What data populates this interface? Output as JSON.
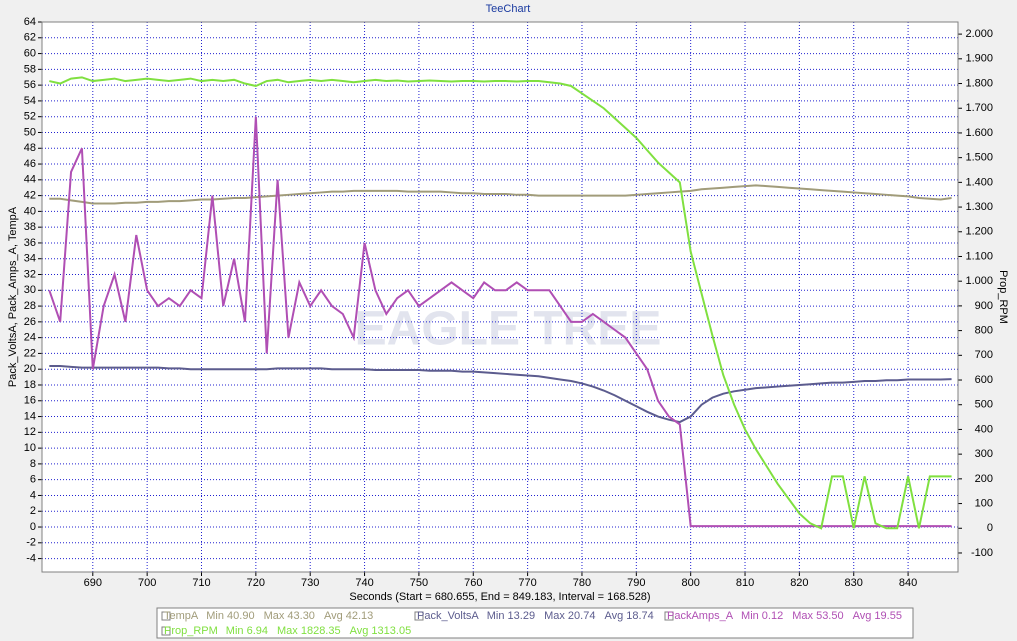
{
  "chart_data": {
    "type": "line",
    "title": "TeeChart",
    "x_label": "Seconds (Start = 680.655, End = 849.183, Interval = 168.528)",
    "y_label": "Pack_VoltsA, Pack_Amps_A, TempA",
    "y2_label": "Prop_RPM",
    "watermark": "EAGLE TREE",
    "grid": true,
    "xlim": [
      680.655,
      849.183
    ],
    "xticks": [
      690,
      700,
      710,
      720,
      730,
      740,
      750,
      760,
      770,
      780,
      790,
      800,
      810,
      820,
      830,
      840
    ],
    "ylim": [
      -5.7,
      64
    ],
    "yticks": [
      -4,
      -2,
      0,
      2,
      4,
      6,
      8,
      10,
      12,
      14,
      16,
      18,
      20,
      22,
      24,
      26,
      28,
      30,
      32,
      34,
      36,
      38,
      40,
      42,
      44,
      46,
      48,
      50,
      52,
      54,
      56,
      58,
      60,
      62,
      64
    ],
    "y2lim": [
      -177,
      2049
    ],
    "y2ticks": [
      -100,
      0,
      100,
      200,
      300,
      400,
      500,
      600,
      700,
      800,
      900,
      {
        "value": 1000,
        "label": "1.000"
      },
      {
        "value": 1100,
        "label": "1.100"
      },
      {
        "value": 1200,
        "label": "1.200"
      },
      {
        "value": 1300,
        "label": "1.300"
      },
      {
        "value": 1400,
        "label": "1.400"
      },
      {
        "value": 1500,
        "label": "1.500"
      },
      {
        "value": 1600,
        "label": "1.600"
      },
      {
        "value": 1700,
        "label": "1.700"
      },
      {
        "value": 1800,
        "label": "1.800"
      },
      {
        "value": 1900,
        "label": "1.900"
      },
      {
        "value": 2000,
        "label": "2.000"
      }
    ],
    "x": [
      682,
      684,
      686,
      688,
      690,
      692,
      694,
      696,
      698,
      700,
      702,
      704,
      706,
      708,
      710,
      712,
      714,
      716,
      718,
      720,
      722,
      724,
      726,
      728,
      730,
      732,
      734,
      736,
      738,
      740,
      742,
      744,
      746,
      748,
      750,
      752,
      754,
      756,
      758,
      760,
      762,
      764,
      766,
      768,
      770,
      772,
      774,
      776,
      778,
      780,
      782,
      784,
      786,
      788,
      790,
      792,
      794,
      796,
      798,
      800,
      802,
      804,
      806,
      808,
      810,
      812,
      814,
      816,
      818,
      820,
      822,
      824,
      826,
      828,
      830,
      832,
      834,
      836,
      838,
      840,
      842,
      844,
      846,
      848
    ],
    "series": [
      {
        "name": "TempA",
        "color": "#a19c7a",
        "stats": [
          "Min 40.90",
          "Max 43.30",
          "Avg 42.13"
        ],
        "values": [
          41.6,
          41.6,
          41.4,
          41.2,
          41.0,
          41.0,
          41.0,
          41.1,
          41.1,
          41.2,
          41.2,
          41.3,
          41.3,
          41.4,
          41.5,
          41.5,
          41.6,
          41.7,
          41.7,
          41.8,
          41.9,
          42.0,
          42.1,
          42.2,
          42.3,
          42.4,
          42.5,
          42.5,
          42.6,
          42.6,
          42.6,
          42.6,
          42.6,
          42.5,
          42.5,
          42.5,
          42.5,
          42.4,
          42.3,
          42.3,
          42.2,
          42.2,
          42.2,
          42.1,
          42.1,
          42.0,
          42.0,
          42.0,
          42.0,
          42.0,
          42.0,
          42.0,
          42.0,
          42.0,
          42.1,
          42.2,
          42.3,
          42.4,
          42.5,
          42.6,
          42.8,
          42.9,
          43.0,
          43.1,
          43.2,
          43.3,
          43.2,
          43.1,
          43.0,
          42.9,
          42.8,
          42.7,
          42.6,
          42.5,
          42.4,
          42.3,
          42.2,
          42.1,
          42.0,
          41.9,
          41.7,
          41.6,
          41.5,
          41.7
        ]
      },
      {
        "name": "Pack_VoltsA",
        "color": "#5c5c8e",
        "stats": [
          "Min 13.29",
          "Max 20.74",
          "Avg 18.74"
        ],
        "values": [
          20.4,
          20.4,
          20.3,
          20.2,
          20.2,
          20.2,
          20.2,
          20.2,
          20.2,
          20.2,
          20.2,
          20.1,
          20.1,
          20.0,
          20.0,
          20.0,
          20.0,
          20.0,
          20.0,
          20.0,
          20.0,
          20.1,
          20.1,
          20.1,
          20.1,
          20.1,
          20.0,
          20.0,
          20.0,
          20.0,
          19.9,
          19.9,
          19.9,
          19.9,
          19.9,
          19.8,
          19.8,
          19.8,
          19.7,
          19.7,
          19.6,
          19.5,
          19.4,
          19.3,
          19.2,
          19.1,
          18.9,
          18.7,
          18.5,
          18.2,
          17.8,
          17.3,
          16.7,
          16.0,
          15.3,
          14.6,
          14.0,
          13.6,
          13.3,
          14.0,
          15.5,
          16.4,
          16.9,
          17.2,
          17.4,
          17.6,
          17.7,
          17.8,
          17.9,
          18.0,
          18.1,
          18.2,
          18.3,
          18.3,
          18.4,
          18.5,
          18.5,
          18.6,
          18.6,
          18.7,
          18.7,
          18.7,
          18.7,
          18.74
        ]
      },
      {
        "name": "PackAmps_A",
        "color": "#b04fb4",
        "stats": [
          "Min 0.12",
          "Max 53.50",
          "Avg 19.55"
        ],
        "values": [
          30,
          26,
          45,
          48,
          20,
          28,
          32,
          26,
          37,
          30,
          28,
          29,
          28,
          30,
          29,
          42,
          28,
          34,
          26,
          52,
          22,
          44,
          24,
          31,
          28,
          30,
          28,
          27,
          24,
          36,
          30,
          27,
          29,
          30,
          28,
          29,
          30,
          31,
          30,
          29,
          31,
          30,
          30,
          31,
          30,
          30,
          30,
          28,
          26,
          26,
          27,
          26,
          25,
          24,
          22,
          20,
          16,
          14,
          13,
          0.12,
          0.12,
          0.12,
          0.12,
          0.12,
          0.12,
          0.12,
          0.12,
          0.12,
          0.12,
          0.12,
          0.12,
          0.12,
          0.12,
          0.12,
          0.12,
          0.12,
          0.12,
          0.12,
          0.12,
          0.12,
          0.12,
          0.12,
          0.12,
          0.12
        ]
      },
      {
        "name": "Prop_RPM",
        "color": "#80e040",
        "axis": "y2",
        "stats": [
          "Min 6.94",
          "Max 1828.35",
          "Avg 1313.05"
        ],
        "values": [
          1810,
          1800,
          1820,
          1825,
          1810,
          1815,
          1820,
          1810,
          1815,
          1820,
          1815,
          1810,
          1815,
          1820,
          1810,
          1815,
          1810,
          1815,
          1800,
          1790,
          1810,
          1815,
          1805,
          1810,
          1815,
          1810,
          1815,
          1810,
          1805,
          1810,
          1815,
          1810,
          1812,
          1808,
          1810,
          1812,
          1810,
          1808,
          1810,
          1810,
          1808,
          1810,
          1810,
          1808,
          1810,
          1810,
          1805,
          1800,
          1790,
          1760,
          1730,
          1700,
          1660,
          1620,
          1580,
          1530,
          1480,
          1440,
          1400,
          1120,
          950,
          780,
          620,
          500,
          400,
          320,
          250,
          180,
          120,
          60,
          20,
          0,
          210,
          210,
          0,
          210,
          20,
          0,
          0,
          210,
          0,
          210,
          210,
          210
        ]
      }
    ]
  }
}
